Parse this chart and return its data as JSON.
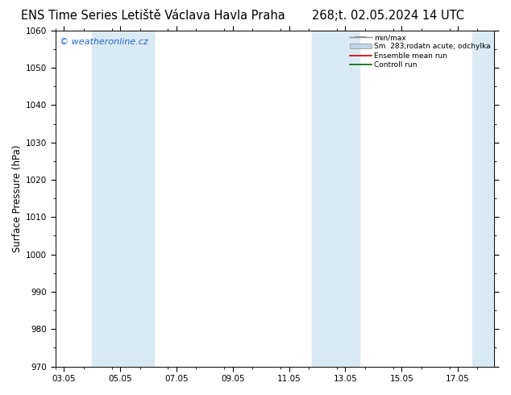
{
  "title_left": "ENS Time Series Letiště Václava Havla Praha",
  "title_right": "268;t. 02.05.2024 14 UTC",
  "ylabel": "Surface Pressure (hPa)",
  "watermark": "© weatheronline.cz",
  "ylim": [
    970,
    1060
  ],
  "yticks": [
    970,
    980,
    990,
    1000,
    1010,
    1020,
    1030,
    1040,
    1050,
    1060
  ],
  "xtick_labels": [
    "03.05",
    "05.05",
    "07.05",
    "09.05",
    "11.05",
    "13.05",
    "15.05",
    "17.05"
  ],
  "xtick_positions": [
    0,
    2,
    4,
    6,
    8,
    10,
    12,
    14
  ],
  "xlim": [
    -0.3,
    15.3
  ],
  "shaded_bands": [
    {
      "x_start": 1.0,
      "x_end": 3.2,
      "color": "#daeaf5"
    },
    {
      "x_start": 8.8,
      "x_end": 10.5,
      "color": "#daeaf5"
    },
    {
      "x_start": 14.5,
      "x_end": 15.3,
      "color": "#daeaf5"
    }
  ],
  "legend_entries": [
    {
      "label": "min/max",
      "type": "errorbar",
      "color": "#888888"
    },
    {
      "label": "Sm  283;rodatn acute; odchylka",
      "type": "fill",
      "color": "#c0d8e8"
    },
    {
      "label": "Ensemble mean run",
      "type": "line",
      "color": "#cc0000"
    },
    {
      "label": "Controll run",
      "type": "line",
      "color": "#006600"
    }
  ],
  "background_color": "#ffffff",
  "plot_bg_color": "#ffffff",
  "title_fontsize": 10.5,
  "tick_label_fontsize": 7.5,
  "ylabel_fontsize": 8.5,
  "watermark_color": "#2266cc",
  "watermark_fontsize": 8
}
